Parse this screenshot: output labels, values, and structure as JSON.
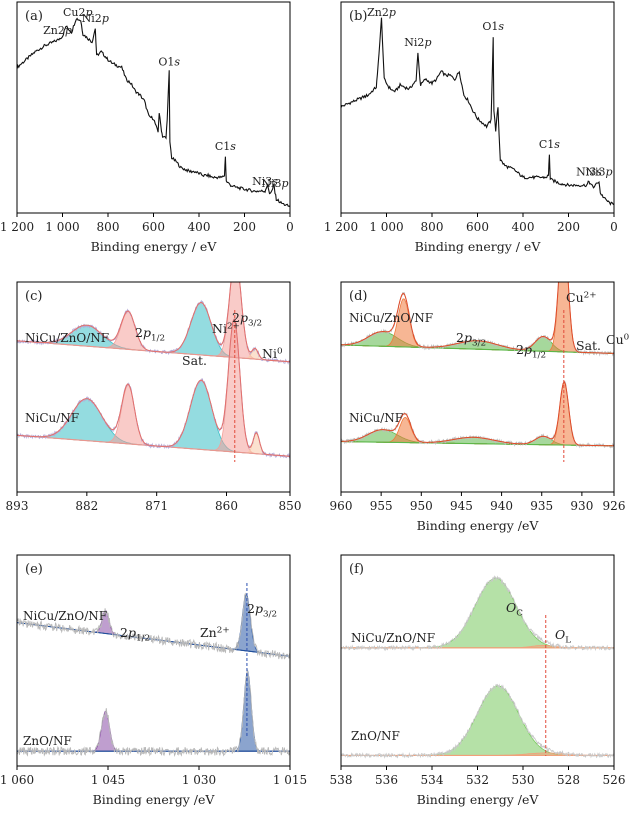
{
  "chart_data": [
    {
      "type": "line",
      "panel": "(a)",
      "xlabel": "Binding energy / eV",
      "xlim": [
        1200,
        0
      ],
      "xticks": [
        "1 200",
        "1 000",
        "800",
        "600",
        "400",
        "200",
        "0"
      ],
      "xtick_values": [
        1200,
        1000,
        800,
        600,
        400,
        200,
        0
      ],
      "series": [
        {
          "x": [
            1200,
            1160,
            1120,
            1080,
            1040,
            1020,
            1000,
            985,
            960,
            940,
            920,
            910,
            890,
            870,
            856,
            850,
            830,
            800,
            780,
            760,
            740,
            720,
            700,
            680,
            660,
            640,
            620,
            600,
            580,
            575,
            565,
            560,
            545,
            540,
            531,
            528,
            520,
            500,
            480,
            460,
            440,
            420,
            400,
            380,
            360,
            340,
            320,
            300,
            288,
            284,
            280,
            260,
            240,
            200,
            160,
            120,
            110,
            100,
            90,
            80,
            70,
            66,
            60,
            40,
            20,
            0
          ],
          "y": [
            0.72,
            0.76,
            0.8,
            0.83,
            0.85,
            0.86,
            0.88,
            0.93,
            0.9,
            0.97,
            0.96,
            0.89,
            0.87,
            0.85,
            0.92,
            0.78,
            0.8,
            0.76,
            0.74,
            0.73,
            0.72,
            0.66,
            0.64,
            0.6,
            0.58,
            0.55,
            0.47,
            0.46,
            0.39,
            0.49,
            0.4,
            0.37,
            0.36,
            0.46,
            0.7,
            0.34,
            0.26,
            0.24,
            0.21,
            0.2,
            0.19,
            0.19,
            0.18,
            0.17,
            0.17,
            0.16,
            0.16,
            0.16,
            0.17,
            0.27,
            0.14,
            0.12,
            0.11,
            0.1,
            0.09,
            0.09,
            0.09,
            0.12,
            0.08,
            0.09,
            0.12,
            0.08,
            0.05,
            0.03,
            0.02,
            0.01
          ]
        }
      ],
      "annotations": [
        {
          "text": "Zn2",
          "sub": "p",
          "x": 1022
        },
        {
          "text": "Cu2",
          "sub": "p",
          "x": 933
        },
        {
          "text": "Ni2",
          "sub": "p",
          "x": 856
        },
        {
          "text": "O1",
          "sub": "s",
          "x": 531
        },
        {
          "text": "C1",
          "sub": "s",
          "x": 284
        },
        {
          "text": "Ni3",
          "sub": "s",
          "x": 110
        },
        {
          "text": "Ni3",
          "sub": "p",
          "x": 66
        }
      ]
    },
    {
      "type": "line",
      "panel": "(b)",
      "xlabel": "Binding energy / eV",
      "xlim": [
        1200,
        0
      ],
      "xticks": [
        "1 200",
        "1 000",
        "800",
        "600",
        "400",
        "200",
        "0"
      ],
      "xtick_values": [
        1200,
        1000,
        800,
        600,
        400,
        200,
        0
      ],
      "series": [
        {
          "x": [
            1200,
            1160,
            1120,
            1080,
            1045,
            1040,
            1022,
            1010,
            990,
            970,
            960,
            940,
            900,
            880,
            870,
            862,
            856,
            850,
            830,
            800,
            780,
            760,
            740,
            720,
            700,
            680,
            660,
            640,
            620,
            600,
            580,
            560,
            540,
            531,
            528,
            520,
            510,
            505,
            500,
            480,
            460,
            440,
            420,
            400,
            380,
            340,
            300,
            288,
            284,
            280,
            240,
            200,
            160,
            120,
            110,
            100,
            90,
            66,
            60,
            40,
            20,
            0
          ],
          "y": [
            0.52,
            0.54,
            0.56,
            0.58,
            0.62,
            0.68,
            0.97,
            0.66,
            0.62,
            0.6,
            0.6,
            0.63,
            0.61,
            0.64,
            0.65,
            0.8,
            0.7,
            0.63,
            0.66,
            0.64,
            0.66,
            0.7,
            0.68,
            0.68,
            0.66,
            0.7,
            0.58,
            0.55,
            0.5,
            0.46,
            0.44,
            0.42,
            0.45,
            0.88,
            0.5,
            0.4,
            0.52,
            0.38,
            0.25,
            0.22,
            0.21,
            0.2,
            0.18,
            0.16,
            0.16,
            0.16,
            0.16,
            0.17,
            0.28,
            0.15,
            0.13,
            0.12,
            0.12,
            0.12,
            0.14,
            0.12,
            0.11,
            0.14,
            0.08,
            0.05,
            0.03,
            0.02
          ]
        }
      ],
      "annotations": [
        {
          "text": "Zn2",
          "sub": "p",
          "x": 1022
        },
        {
          "text": "Ni2",
          "sub": "p",
          "x": 862
        },
        {
          "text": "O1",
          "sub": "s",
          "x": 531
        },
        {
          "text": "C1",
          "sub": "s",
          "x": 284
        },
        {
          "text": "Ni3",
          "sub": "s",
          "x": 110
        },
        {
          "text": "Ni3",
          "sub": "p",
          "x": 66
        }
      ]
    },
    {
      "type": "line",
      "panel": "(c)",
      "xlim": [
        893,
        850
      ],
      "xticks": [
        "893",
        "882",
        "871",
        "860",
        "850"
      ],
      "xtick_values": [
        893,
        882,
        871,
        860,
        850
      ],
      "series": [
        {
          "name": "NiCu/ZnO/NF",
          "offset": 0.62,
          "tilt": 0.1,
          "peaks": [
            [
              882.0,
              2.4,
              0.1
            ],
            [
              875.5,
              1.1,
              0.18
            ],
            [
              864.0,
              1.6,
              0.25
            ],
            [
              858.6,
              0.9,
              0.48
            ],
            [
              855.5,
              0.5,
              0.05
            ]
          ]
        },
        {
          "name": "NiCu/NF",
          "offset": 0.17,
          "tilt": 0.1,
          "peaks": [
            [
              882.0,
              2.4,
              0.2
            ],
            [
              875.5,
              1.0,
              0.28
            ],
            [
              864.0,
              1.7,
              0.33
            ],
            [
              858.8,
              0.9,
              0.63
            ],
            [
              855.3,
              0.5,
              0.1
            ]
          ]
        }
      ],
      "labels": [
        {
          "text": "NiCu/ZnO/NF",
          "kind": "sample"
        },
        {
          "text": "NiCu/NF",
          "kind": "sample"
        },
        {
          "text": "2p",
          "sub": "1/2"
        },
        {
          "text": "Sat."
        },
        {
          "text": "Ni",
          "sup": "2+"
        },
        {
          "text": "2p",
          "sub": "3/2"
        },
        {
          "text": "Ni",
          "sup": "0"
        }
      ],
      "colors": {
        "satellite": "#3dbfc7",
        "ni2": "#f4a09a",
        "ni0": "#f7c9a8",
        "envelope": "#e46f6a",
        "raw": "#b3a9d6"
      }
    },
    {
      "type": "line",
      "panel": "(d)",
      "xlabel": "Binding energy /eV",
      "xlim": [
        960,
        926
      ],
      "xticks": [
        "960",
        "955",
        "950",
        "945",
        "940",
        "935",
        "930",
        "926"
      ],
      "xtick_values": [
        960,
        955,
        950,
        945,
        940,
        935,
        930,
        926
      ],
      "series": [
        {
          "name": "NiCu/ZnO/NF",
          "offset": 0.66,
          "tilt": 0.04,
          "peaks": [
            [
              954.8,
              1.8,
              0.07
            ],
            [
              952.2,
              0.7,
              0.23
            ],
            [
              943.0,
              2.5,
              0.04
            ],
            [
              934.8,
              1.0,
              0.07
            ],
            [
              932.3,
              0.55,
              0.6
            ]
          ]
        },
        {
          "name": "NiCu/NF",
          "offset": 0.22,
          "tilt": 0.02,
          "peaks": [
            [
              954.8,
              1.8,
              0.06
            ],
            [
              952.0,
              0.7,
              0.12
            ],
            [
              943.5,
              2.5,
              0.03
            ],
            [
              934.8,
              1.0,
              0.04
            ],
            [
              932.2,
              0.55,
              0.3
            ]
          ]
        }
      ],
      "labels": [
        {
          "text": "NiCu/ZnO/NF",
          "kind": "sample"
        },
        {
          "text": "NiCu/NF",
          "kind": "sample"
        },
        {
          "text": "2p",
          "sub": "3/2"
        },
        {
          "text": "2p",
          "sub": "1/2"
        },
        {
          "text": "Sat."
        },
        {
          "text": "Cu",
          "sup": "2+"
        },
        {
          "text": "Cu",
          "sup": "0"
        }
      ],
      "colors": {
        "cu0": "#f07a3c",
        "cu2": "#5cb84a",
        "envelope": "#e24a26",
        "raw": "#bdbdbd"
      }
    },
    {
      "type": "line",
      "panel": "(e)",
      "xlabel": "Binding energy /eV",
      "xlim": [
        1060,
        1015
      ],
      "xticks": [
        "1 060",
        "1 045",
        "1 030",
        "1 015"
      ],
      "xtick_values": [
        1060,
        1045,
        1030,
        1015
      ],
      "series": [
        {
          "name": "NiCu/ZnO/NF",
          "offset": 0.52,
          "tilt": 0.16,
          "peaks": [
            [
              1045.4,
              0.55,
              0.11
            ],
            [
              1022.2,
              0.65,
              0.27
            ]
          ]
        },
        {
          "name": "ZnO/NF",
          "offset": 0.07,
          "tilt": 0.0,
          "peaks": [
            [
              1045.4,
              0.65,
              0.19
            ],
            [
              1022.0,
              0.6,
              0.38
            ]
          ]
        }
      ],
      "labels": [
        {
          "text": "NiCu/ZnO/NF",
          "kind": "sample"
        },
        {
          "text": "ZnO/NF",
          "kind": "sample"
        },
        {
          "text": "2p",
          "sub": "1/2"
        },
        {
          "text": "Zn",
          "sup": "2+"
        },
        {
          "text": "2p",
          "sub": "3/2"
        }
      ],
      "colors": {
        "zn2p12": "#8b4fa8",
        "zn2p32": "#2b5aa6",
        "baseline": "#1f4f9a",
        "raw": "#b8b8b8"
      }
    },
    {
      "type": "line",
      "panel": "(f)",
      "xlabel": "Binding energy /eV",
      "xlim": [
        538,
        526
      ],
      "xticks": [
        "538",
        "536",
        "534",
        "532",
        "530",
        "528",
        "526"
      ],
      "xtick_values": [
        538,
        536,
        534,
        532,
        530,
        528,
        526
      ],
      "series": [
        {
          "name": "NiCu/ZnO/NF",
          "offset": 0.56,
          "tilt": 0.0,
          "peaks": [
            [
              531.2,
              0.9,
              0.33
            ],
            [
              529.1,
              0.5,
              0.012
            ]
          ]
        },
        {
          "name": "ZnO/NF",
          "offset": 0.05,
          "tilt": 0.0,
          "peaks": [
            [
              531.1,
              0.9,
              0.33
            ],
            [
              529.0,
              0.8,
              0.012
            ]
          ]
        }
      ],
      "labels": [
        {
          "text": "NiCu/ZnO/NF",
          "kind": "sample"
        },
        {
          "text": "ZnO/NF",
          "kind": "sample"
        },
        {
          "text": "O",
          "sub": "C"
        },
        {
          "text": "O",
          "sub": "L"
        }
      ],
      "colors": {
        "oc": "#79c95e",
        "ol": "#f2a07a",
        "raw": "#c8c8c8"
      }
    }
  ]
}
